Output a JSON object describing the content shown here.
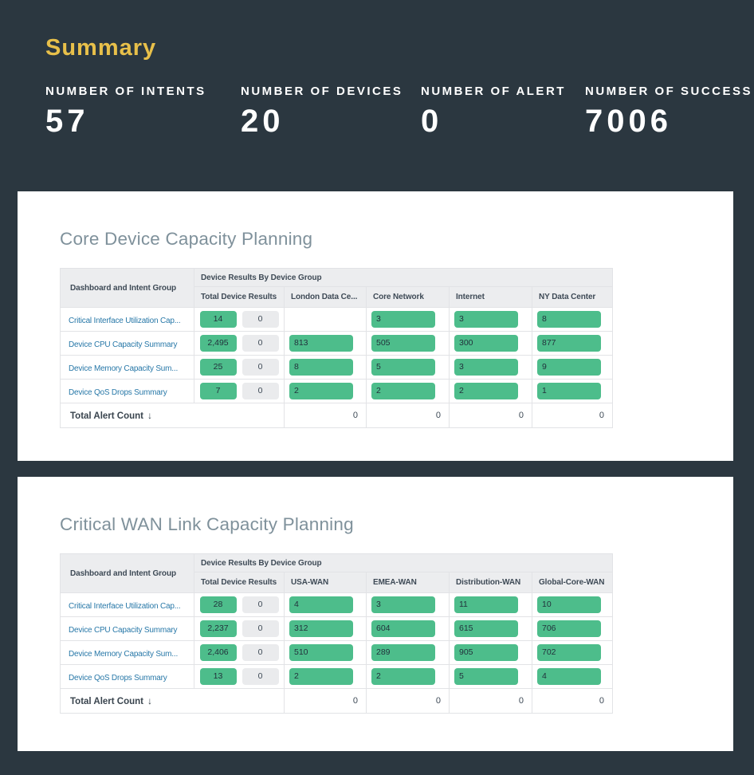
{
  "theme": {
    "colors": {
      "bg": "#2B3740",
      "gold": "#E8C04A",
      "card-title": "#7F919B",
      "link": "#2878A8",
      "green": "#4DBD8B",
      "badge-gray": "#EAEBED",
      "header-bg": "#ECEDEF",
      "border": "#E2E3E6",
      "text": "#3E4A56"
    }
  },
  "summary": {
    "title": "Summary",
    "stats": [
      {
        "label": "NUMBER OF INTENTS",
        "value": "57"
      },
      {
        "label": "NUMBER OF DEVICES",
        "value": "20"
      },
      {
        "label": "NUMBER OF ALERT",
        "value": "0"
      },
      {
        "label": "NUMBER OF SUCCESS",
        "value": "7006"
      }
    ]
  },
  "cards": [
    {
      "title": "Core Device Capacity Planning",
      "table": {
        "corner_header": "Dashboard and Intent Group",
        "group_header": "Device Results By Device Group",
        "columns": [
          "Total Device Results",
          "London Data Ce...",
          "Core Network",
          "Internet",
          "NY Data Center"
        ],
        "rows": [
          {
            "label": "Critical Interface Utilization Cap...",
            "total": "14",
            "total_zero": "0",
            "cells": [
              null,
              "3",
              "3",
              "8"
            ]
          },
          {
            "label": "Device CPU Capacity Summary",
            "total": "2,495",
            "total_zero": "0",
            "cells": [
              "813",
              "505",
              "300",
              "877"
            ]
          },
          {
            "label": "Device Memory Capacity Sum...",
            "total": "25",
            "total_zero": "0",
            "cells": [
              "8",
              "5",
              "3",
              "9"
            ]
          },
          {
            "label": "Device QoS Drops Summary",
            "total": "7",
            "total_zero": "0",
            "cells": [
              "2",
              "2",
              "2",
              "1"
            ]
          }
        ],
        "footer": {
          "label": "Total Alert Count",
          "sort_icon": "↓",
          "values": [
            "0",
            "0",
            "0",
            "0"
          ]
        }
      }
    },
    {
      "title": "Critical WAN Link Capacity Planning",
      "table": {
        "corner_header": "Dashboard and Intent Group",
        "group_header": "Device Results By Device Group",
        "columns": [
          "Total Device Results",
          "USA-WAN",
          "EMEA-WAN",
          "Distribution-WAN",
          "Global-Core-WAN"
        ],
        "rows": [
          {
            "label": "Critical Interface Utilization Cap...",
            "total": "28",
            "total_zero": "0",
            "cells": [
              "4",
              "3",
              "11",
              "10"
            ]
          },
          {
            "label": "Device CPU Capacity Summary",
            "total": "2,237",
            "total_zero": "0",
            "cells": [
              "312",
              "604",
              "615",
              "706"
            ]
          },
          {
            "label": "Device Memory Capacity Sum...",
            "total": "2,406",
            "total_zero": "0",
            "cells": [
              "510",
              "289",
              "905",
              "702"
            ]
          },
          {
            "label": "Device QoS Drops Summary",
            "total": "13",
            "total_zero": "0",
            "cells": [
              "2",
              "2",
              "5",
              "4"
            ]
          }
        ],
        "footer": {
          "label": "Total Alert Count",
          "sort_icon": "↓",
          "values": [
            "0",
            "0",
            "0",
            "0"
          ]
        }
      }
    }
  ]
}
